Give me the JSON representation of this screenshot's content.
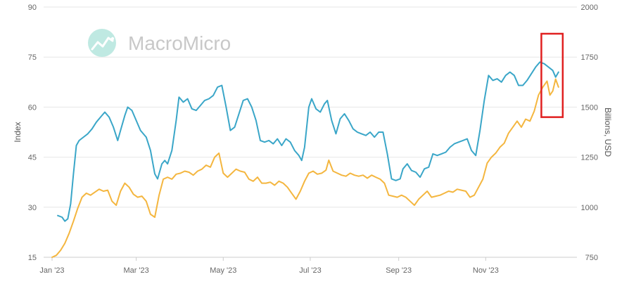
{
  "watermark": {
    "text": "MacroMicro",
    "icon": "macromicro-logo-icon"
  },
  "colors": {
    "blue": "#3aa6c8",
    "orange": "#f4b63f",
    "highlight": "#e02020",
    "grid": "#e6e6e6"
  },
  "chart_data": {
    "type": "line",
    "title": "",
    "xlabel": "",
    "ylabel": "Index",
    "y2label": "Billions, USD",
    "x_ticks": [
      "Jan '23",
      "Mar '23",
      "May '23",
      "Jul '23",
      "Sep '23",
      "Nov '23"
    ],
    "x_tick_dates": [
      "2023-01-01",
      "2023-03-01",
      "2023-05-01",
      "2023-07-01",
      "2023-09-01",
      "2023-11-01"
    ],
    "y_ticks": [
      15,
      30,
      45,
      60,
      75,
      90
    ],
    "y2_ticks": [
      750,
      1000,
      1250,
      1500,
      1750,
      2000
    ],
    "ylim": [
      15,
      90
    ],
    "y2lim": [
      750,
      2000
    ],
    "xlim": [
      "2023-01-01",
      "2023-12-31"
    ],
    "grid": true,
    "series": [
      {
        "axis": "left",
        "color": "#3aa6c8",
        "points": [
          [
            "2023-01-05",
            27.5
          ],
          [
            "2023-01-08",
            27.0
          ],
          [
            "2023-01-10",
            25.8
          ],
          [
            "2023-01-12",
            26.5
          ],
          [
            "2023-01-14",
            31.0
          ],
          [
            "2023-01-16",
            40.0
          ],
          [
            "2023-01-18",
            48.5
          ],
          [
            "2023-01-20",
            50.0
          ],
          [
            "2023-01-23",
            51.0
          ],
          [
            "2023-01-26",
            52.0
          ],
          [
            "2023-01-29",
            53.5
          ],
          [
            "2023-02-01",
            55.5
          ],
          [
            "2023-02-04",
            57.0
          ],
          [
            "2023-02-07",
            58.5
          ],
          [
            "2023-02-10",
            57.0
          ],
          [
            "2023-02-13",
            54.0
          ],
          [
            "2023-02-16",
            50.0
          ],
          [
            "2023-02-18",
            53.0
          ],
          [
            "2023-02-21",
            57.5
          ],
          [
            "2023-02-23",
            60.0
          ],
          [
            "2023-02-26",
            59.0
          ],
          [
            "2023-03-01",
            56.0
          ],
          [
            "2023-03-04",
            53.0
          ],
          [
            "2023-03-08",
            51.0
          ],
          [
            "2023-03-11",
            47.0
          ],
          [
            "2023-03-14",
            40.0
          ],
          [
            "2023-03-16",
            38.5
          ],
          [
            "2023-03-19",
            43.0
          ],
          [
            "2023-03-21",
            44.0
          ],
          [
            "2023-03-23",
            43.0
          ],
          [
            "2023-03-26",
            47.0
          ],
          [
            "2023-03-29",
            56.0
          ],
          [
            "2023-03-31",
            63.0
          ],
          [
            "2023-04-03",
            61.5
          ],
          [
            "2023-04-06",
            62.5
          ],
          [
            "2023-04-09",
            59.5
          ],
          [
            "2023-04-12",
            59.0
          ],
          [
            "2023-04-15",
            60.5
          ],
          [
            "2023-04-18",
            62.0
          ],
          [
            "2023-04-21",
            62.5
          ],
          [
            "2023-04-24",
            63.5
          ],
          [
            "2023-04-27",
            66.0
          ],
          [
            "2023-04-30",
            66.5
          ],
          [
            "2023-05-03",
            60.0
          ],
          [
            "2023-05-06",
            53.0
          ],
          [
            "2023-05-09",
            54.0
          ],
          [
            "2023-05-12",
            58.0
          ],
          [
            "2023-05-15",
            62.0
          ],
          [
            "2023-05-18",
            62.5
          ],
          [
            "2023-05-21",
            60.0
          ],
          [
            "2023-05-24",
            56.0
          ],
          [
            "2023-05-27",
            50.0
          ],
          [
            "2023-05-30",
            49.5
          ],
          [
            "2023-06-02",
            50.0
          ],
          [
            "2023-06-05",
            49.0
          ],
          [
            "2023-06-08",
            50.5
          ],
          [
            "2023-06-11",
            48.5
          ],
          [
            "2023-06-14",
            50.5
          ],
          [
            "2023-06-17",
            49.5
          ],
          [
            "2023-06-20",
            47.0
          ],
          [
            "2023-06-23",
            45.5
          ],
          [
            "2023-06-25",
            44.0
          ],
          [
            "2023-06-27",
            48.0
          ],
          [
            "2023-06-30",
            60.0
          ],
          [
            "2023-07-02",
            62.5
          ],
          [
            "2023-07-05",
            59.5
          ],
          [
            "2023-07-08",
            58.5
          ],
          [
            "2023-07-11",
            61.0
          ],
          [
            "2023-07-13",
            62.0
          ],
          [
            "2023-07-16",
            56.0
          ],
          [
            "2023-07-19",
            52.0
          ],
          [
            "2023-07-22",
            56.5
          ],
          [
            "2023-07-25",
            58.0
          ],
          [
            "2023-07-28",
            56.0
          ],
          [
            "2023-07-31",
            53.5
          ],
          [
            "2023-08-03",
            52.5
          ],
          [
            "2023-08-06",
            52.0
          ],
          [
            "2023-08-09",
            51.5
          ],
          [
            "2023-08-12",
            52.5
          ],
          [
            "2023-08-15",
            51.0
          ],
          [
            "2023-08-18",
            52.5
          ],
          [
            "2023-08-21",
            52.5
          ],
          [
            "2023-08-24",
            46.0
          ],
          [
            "2023-08-27",
            38.5
          ],
          [
            "2023-08-30",
            38.0
          ],
          [
            "2023-09-02",
            38.5
          ],
          [
            "2023-09-04",
            41.5
          ],
          [
            "2023-09-07",
            43.0
          ],
          [
            "2023-09-10",
            41.0
          ],
          [
            "2023-09-13",
            40.5
          ],
          [
            "2023-09-16",
            39.0
          ],
          [
            "2023-09-19",
            41.5
          ],
          [
            "2023-09-22",
            42.0
          ],
          [
            "2023-09-25",
            46.0
          ],
          [
            "2023-09-28",
            45.5
          ],
          [
            "2023-10-01",
            46.0
          ],
          [
            "2023-10-04",
            46.5
          ],
          [
            "2023-10-07",
            48.0
          ],
          [
            "2023-10-10",
            49.0
          ],
          [
            "2023-10-13",
            49.5
          ],
          [
            "2023-10-16",
            50.0
          ],
          [
            "2023-10-19",
            50.5
          ],
          [
            "2023-10-22",
            47.0
          ],
          [
            "2023-10-25",
            45.5
          ],
          [
            "2023-10-28",
            53.0
          ],
          [
            "2023-10-31",
            62.0
          ],
          [
            "2023-11-03",
            69.5
          ],
          [
            "2023-11-06",
            68.0
          ],
          [
            "2023-11-09",
            68.5
          ],
          [
            "2023-11-12",
            67.5
          ],
          [
            "2023-11-15",
            69.5
          ],
          [
            "2023-11-18",
            70.5
          ],
          [
            "2023-11-21",
            69.5
          ],
          [
            "2023-11-24",
            66.5
          ],
          [
            "2023-11-27",
            66.5
          ],
          [
            "2023-11-30",
            68.0
          ],
          [
            "2023-12-03",
            70.0
          ],
          [
            "2023-12-06",
            72.0
          ],
          [
            "2023-12-09",
            73.5
          ],
          [
            "2023-12-12",
            73.0
          ],
          [
            "2023-12-15",
            72.0
          ],
          [
            "2023-12-18",
            71.0
          ],
          [
            "2023-12-20",
            69.0
          ],
          [
            "2023-12-22",
            70.5
          ]
        ]
      },
      {
        "axis": "right",
        "color": "#f4b63f",
        "points": [
          [
            "2023-01-01",
            750
          ],
          [
            "2023-01-04",
            760
          ],
          [
            "2023-01-07",
            785
          ],
          [
            "2023-01-10",
            820
          ],
          [
            "2023-01-13",
            870
          ],
          [
            "2023-01-16",
            930
          ],
          [
            "2023-01-19",
            995
          ],
          [
            "2023-01-22",
            1050
          ],
          [
            "2023-01-25",
            1070
          ],
          [
            "2023-01-28",
            1060
          ],
          [
            "2023-01-31",
            1075
          ],
          [
            "2023-02-03",
            1090
          ],
          [
            "2023-02-06",
            1080
          ],
          [
            "2023-02-09",
            1085
          ],
          [
            "2023-02-12",
            1030
          ],
          [
            "2023-02-15",
            1010
          ],
          [
            "2023-02-18",
            1080
          ],
          [
            "2023-02-21",
            1120
          ],
          [
            "2023-02-24",
            1100
          ],
          [
            "2023-02-27",
            1065
          ],
          [
            "2023-03-02",
            1050
          ],
          [
            "2023-03-05",
            1055
          ],
          [
            "2023-03-08",
            1030
          ],
          [
            "2023-03-11",
            965
          ],
          [
            "2023-03-14",
            950
          ],
          [
            "2023-03-17",
            1060
          ],
          [
            "2023-03-20",
            1140
          ],
          [
            "2023-03-23",
            1150
          ],
          [
            "2023-03-26",
            1140
          ],
          [
            "2023-03-29",
            1165
          ],
          [
            "2023-04-01",
            1170
          ],
          [
            "2023-04-04",
            1180
          ],
          [
            "2023-04-07",
            1175
          ],
          [
            "2023-04-10",
            1160
          ],
          [
            "2023-04-13",
            1180
          ],
          [
            "2023-04-16",
            1190
          ],
          [
            "2023-04-19",
            1210
          ],
          [
            "2023-04-22",
            1200
          ],
          [
            "2023-04-25",
            1250
          ],
          [
            "2023-04-28",
            1270
          ],
          [
            "2023-05-01",
            1170
          ],
          [
            "2023-05-04",
            1150
          ],
          [
            "2023-05-07",
            1170
          ],
          [
            "2023-05-10",
            1190
          ],
          [
            "2023-05-13",
            1180
          ],
          [
            "2023-05-16",
            1175
          ],
          [
            "2023-05-19",
            1140
          ],
          [
            "2023-05-22",
            1130
          ],
          [
            "2023-05-25",
            1150
          ],
          [
            "2023-05-28",
            1120
          ],
          [
            "2023-05-31",
            1120
          ],
          [
            "2023-06-03",
            1125
          ],
          [
            "2023-06-06",
            1110
          ],
          [
            "2023-06-09",
            1130
          ],
          [
            "2023-06-12",
            1120
          ],
          [
            "2023-06-15",
            1100
          ],
          [
            "2023-06-18",
            1070
          ],
          [
            "2023-06-21",
            1040
          ],
          [
            "2023-06-24",
            1080
          ],
          [
            "2023-06-27",
            1130
          ],
          [
            "2023-06-30",
            1170
          ],
          [
            "2023-07-03",
            1180
          ],
          [
            "2023-07-06",
            1165
          ],
          [
            "2023-07-09",
            1170
          ],
          [
            "2023-07-12",
            1185
          ],
          [
            "2023-07-14",
            1235
          ],
          [
            "2023-07-17",
            1180
          ],
          [
            "2023-07-20",
            1170
          ],
          [
            "2023-07-23",
            1160
          ],
          [
            "2023-07-26",
            1155
          ],
          [
            "2023-07-29",
            1170
          ],
          [
            "2023-08-01",
            1160
          ],
          [
            "2023-08-04",
            1155
          ],
          [
            "2023-08-07",
            1160
          ],
          [
            "2023-08-10",
            1145
          ],
          [
            "2023-08-13",
            1160
          ],
          [
            "2023-08-16",
            1150
          ],
          [
            "2023-08-19",
            1140
          ],
          [
            "2023-08-22",
            1120
          ],
          [
            "2023-08-25",
            1060
          ],
          [
            "2023-08-28",
            1055
          ],
          [
            "2023-08-31",
            1050
          ],
          [
            "2023-09-03",
            1060
          ],
          [
            "2023-09-06",
            1050
          ],
          [
            "2023-09-09",
            1030
          ],
          [
            "2023-09-12",
            1010
          ],
          [
            "2023-09-15",
            1040
          ],
          [
            "2023-09-18",
            1060
          ],
          [
            "2023-09-21",
            1080
          ],
          [
            "2023-09-24",
            1050
          ],
          [
            "2023-09-27",
            1055
          ],
          [
            "2023-09-30",
            1060
          ],
          [
            "2023-10-03",
            1070
          ],
          [
            "2023-10-06",
            1080
          ],
          [
            "2023-10-09",
            1075
          ],
          [
            "2023-10-12",
            1090
          ],
          [
            "2023-10-15",
            1085
          ],
          [
            "2023-10-18",
            1080
          ],
          [
            "2023-10-21",
            1050
          ],
          [
            "2023-10-24",
            1060
          ],
          [
            "2023-10-27",
            1100
          ],
          [
            "2023-10-30",
            1140
          ],
          [
            "2023-11-02",
            1220
          ],
          [
            "2023-11-05",
            1250
          ],
          [
            "2023-11-08",
            1270
          ],
          [
            "2023-11-11",
            1300
          ],
          [
            "2023-11-14",
            1320
          ],
          [
            "2023-11-17",
            1370
          ],
          [
            "2023-11-20",
            1400
          ],
          [
            "2023-11-23",
            1430
          ],
          [
            "2023-11-26",
            1400
          ],
          [
            "2023-11-29",
            1440
          ],
          [
            "2023-12-02",
            1430
          ],
          [
            "2023-12-05",
            1480
          ],
          [
            "2023-12-08",
            1560
          ],
          [
            "2023-12-11",
            1600
          ],
          [
            "2023-12-14",
            1630
          ],
          [
            "2023-12-16",
            1560
          ],
          [
            "2023-12-18",
            1580
          ],
          [
            "2023-12-20",
            1640
          ],
          [
            "2023-12-22",
            1600
          ]
        ]
      }
    ],
    "annotations": [
      {
        "type": "highlight-box",
        "color": "#e02020",
        "x_range": [
          "2023-12-10",
          "2023-12-25"
        ],
        "y_range": [
          57,
          73
        ]
      }
    ]
  }
}
